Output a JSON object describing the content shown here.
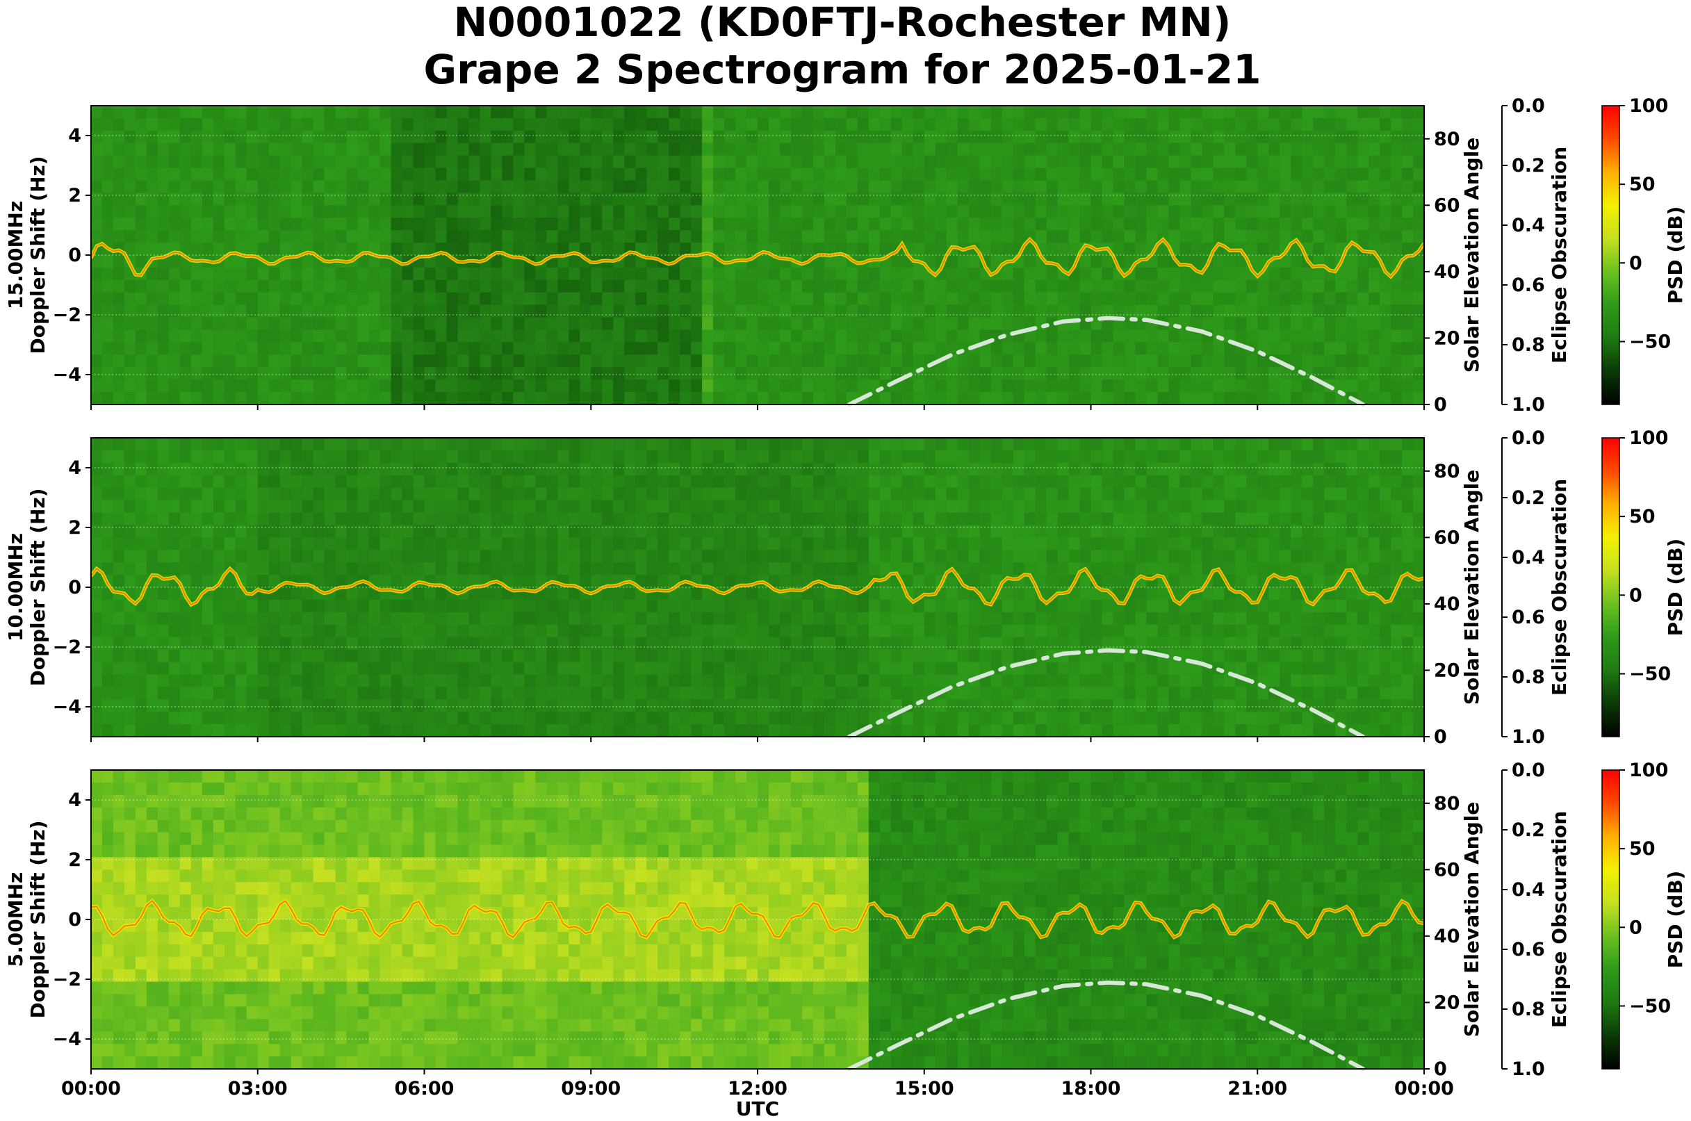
{
  "title": {
    "line1": "N0001022 (KD0FTJ-Rochester MN)",
    "line2": "Grape 2 Spectrogram for 2025-01-21"
  },
  "xaxis": {
    "label": "UTC",
    "ticks": [
      "00:00",
      "03:00",
      "06:00",
      "09:00",
      "12:00",
      "15:00",
      "18:00",
      "21:00",
      "00:00"
    ],
    "range_hours": [
      0,
      24
    ]
  },
  "colors": {
    "colormap": [
      "#000000",
      "#0a3a06",
      "#1f7a12",
      "#2e9a1a",
      "#6cc020",
      "#c6e020",
      "#f4f000",
      "#ffb000",
      "#ff4a00",
      "#ff0000"
    ],
    "elevation_curve": "#d8e8d8"
  },
  "chart_data": [
    {
      "type": "heatmap",
      "ylabel_line1": "15.00MHz",
      "ylabel_line2": "Doppler Shift (Hz)",
      "ylim": [
        -5,
        5
      ],
      "yticks": [
        "4",
        "2",
        "0",
        "−2",
        "−4"
      ],
      "right_axis_label": "Solar Elevation Angle",
      "right_ylim": [
        0,
        90
      ],
      "right_ticks": [
        "80",
        "60",
        "40",
        "20",
        "0"
      ],
      "eclipse_label": "Eclipse Obscuration",
      "eclipse_ticks": [
        "0.0",
        "0.2",
        "0.4",
        "0.6",
        "0.8",
        "1.0"
      ],
      "colorbar_label": "PSD (dB)",
      "colorbar_ticks": [
        "100",
        "50",
        "0",
        "−50"
      ],
      "colorbar_range": [
        -90,
        100
      ],
      "solar_elevation": {
        "x": [
          13.65,
          14.5,
          15.5,
          16.5,
          17.5,
          18.3,
          19.0,
          20.0,
          21.0,
          22.0,
          22.9
        ],
        "y": [
          0,
          7,
          15,
          21,
          25,
          26,
          25.5,
          22,
          16,
          8,
          0
        ]
      }
    },
    {
      "type": "heatmap",
      "ylabel_line1": "10.00MHz",
      "ylabel_line2": "Doppler Shift (Hz)",
      "ylim": [
        -5,
        5
      ],
      "yticks": [
        "4",
        "2",
        "0",
        "−2",
        "−4"
      ],
      "right_axis_label": "Solar Elevation Angle",
      "right_ylim": [
        0,
        90
      ],
      "right_ticks": [
        "80",
        "60",
        "40",
        "20",
        "0"
      ],
      "eclipse_label": "Eclipse Obscuration",
      "eclipse_ticks": [
        "0.0",
        "0.2",
        "0.4",
        "0.6",
        "0.8",
        "1.0"
      ],
      "colorbar_label": "PSD (dB)",
      "colorbar_ticks": [
        "100",
        "50",
        "0",
        "−50"
      ],
      "colorbar_range": [
        -90,
        100
      ],
      "solar_elevation": {
        "x": [
          13.65,
          14.5,
          15.5,
          16.5,
          17.5,
          18.3,
          19.0,
          20.0,
          21.0,
          22.0,
          22.9
        ],
        "y": [
          0,
          7,
          15,
          21,
          25,
          26,
          25.5,
          22,
          16,
          8,
          0
        ]
      }
    },
    {
      "type": "heatmap",
      "ylabel_line1": "5.00MHz",
      "ylabel_line2": "Doppler Shift (Hz)",
      "ylim": [
        -5,
        5
      ],
      "yticks": [
        "4",
        "2",
        "0",
        "−2",
        "−4"
      ],
      "right_axis_label": "Solar Elevation Angle",
      "right_ylim": [
        0,
        90
      ],
      "right_ticks": [
        "80",
        "60",
        "40",
        "20",
        "0"
      ],
      "eclipse_label": "Eclipse Obscuration",
      "eclipse_ticks": [
        "0.0",
        "0.2",
        "0.4",
        "0.6",
        "0.8",
        "1.0"
      ],
      "colorbar_label": "PSD (dB)",
      "colorbar_ticks": [
        "100",
        "50",
        "0",
        "−50"
      ],
      "colorbar_range": [
        -90,
        100
      ],
      "solar_elevation": {
        "x": [
          13.65,
          14.5,
          15.5,
          16.5,
          17.5,
          18.3,
          19.0,
          20.0,
          21.0,
          22.0,
          22.9
        ],
        "y": [
          0,
          7,
          15,
          21,
          25,
          26,
          25.5,
          22,
          16,
          8,
          0
        ]
      }
    }
  ]
}
